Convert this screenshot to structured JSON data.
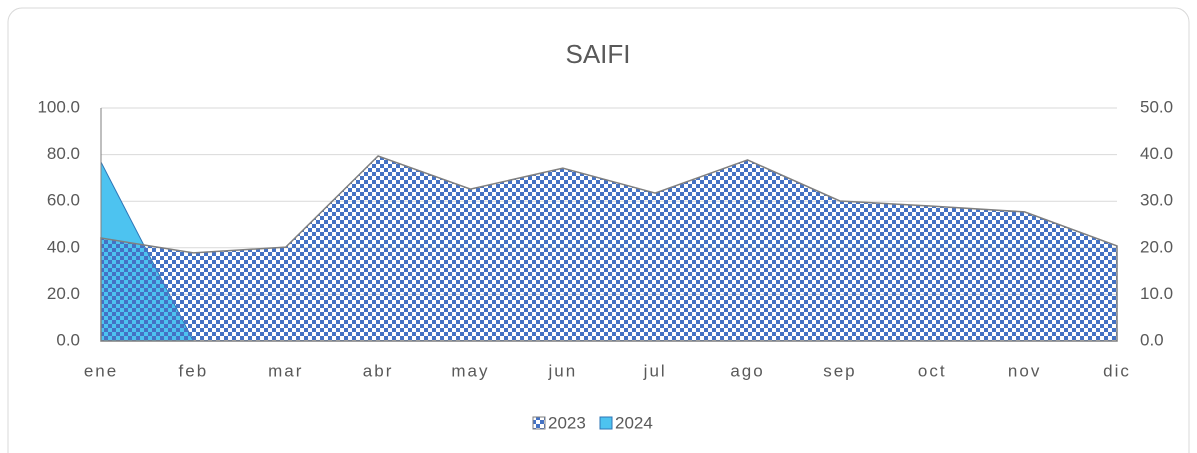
{
  "chart_data": {
    "type": "area",
    "title": "SAIFI",
    "categories": [
      "ene",
      "feb",
      "mar",
      "abr",
      "may",
      "jun",
      "jul",
      "ago",
      "sep",
      "oct",
      "nov",
      "dic"
    ],
    "series": [
      {
        "name": "2023",
        "color": "#4472c4",
        "values": [
          44.2,
          37.8,
          40.3,
          79.4,
          65.2,
          74.2,
          63.5,
          77.7,
          60.1,
          57.9,
          55.4,
          40.8
        ]
      },
      {
        "name": "2024",
        "color": "#4dc3f0",
        "axis": "y2",
        "values": [
          38.4,
          0,
          null,
          null,
          null,
          null,
          null,
          null,
          null,
          null,
          null,
          null
        ]
      }
    ],
    "ylim": [
      0,
      100
    ],
    "yticks": [
      {
        "value": 0,
        "label": "0.0"
      },
      {
        "value": 20,
        "label": "20.0"
      },
      {
        "value": 40,
        "label": "40.0"
      },
      {
        "value": 60,
        "label": "60.0"
      },
      {
        "value": 80,
        "label": "80.0"
      },
      {
        "value": 100,
        "label": "100.0"
      }
    ],
    "y2lim": [
      0,
      50
    ],
    "y2ticks": [
      {
        "value": 0,
        "label": "0.0"
      },
      {
        "value": 10,
        "label": "10.0"
      },
      {
        "value": 20,
        "label": "20.0"
      },
      {
        "value": 30,
        "label": "30.0"
      },
      {
        "value": 40,
        "label": "40.0"
      },
      {
        "value": 50,
        "label": "50.0"
      }
    ],
    "grid": true,
    "legend": "bottom"
  }
}
